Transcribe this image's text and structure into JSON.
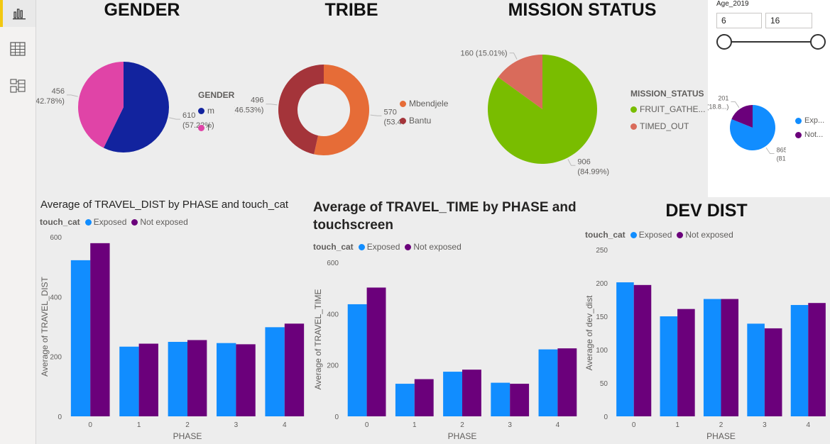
{
  "nav": {
    "items": [
      {
        "name": "report-view",
        "icon": "bar-chart-icon"
      },
      {
        "name": "data-view",
        "icon": "table-grid-icon"
      },
      {
        "name": "model-view",
        "icon": "model-diagram-icon"
      }
    ]
  },
  "slicer": {
    "title": "Age_2019",
    "min_value": "6",
    "max_value": "16"
  },
  "colors": {
    "m": "#12239e",
    "f": "#e044a7",
    "mbendjele": "#e66c37",
    "bantu": "#a4343a",
    "fruit": "#79bd00",
    "timed_out": "#d96b5b",
    "exposed": "#118dff",
    "not_exposed": "#6b007b"
  },
  "chart_data": [
    {
      "type": "pie",
      "title": "GENDER",
      "legend_title": "GENDER",
      "legend_position": "right",
      "slices": [
        {
          "label": "m",
          "value": 610,
          "display": "610",
          "pct": "(57.22%)"
        },
        {
          "label": "f",
          "value": 456,
          "display": "456",
          "pct": "(42.78%)"
        }
      ]
    },
    {
      "type": "pie",
      "subtype": "donut",
      "title": "TRIBE",
      "legend_position": "right",
      "slices": [
        {
          "label": "Mbendjele",
          "value": 570,
          "display": "570",
          "pct": "(53.47%)"
        },
        {
          "label": "Bantu",
          "value": 496,
          "display": "496",
          "pct": "(46.53%)"
        }
      ]
    },
    {
      "type": "pie",
      "title": "MISSION STATUS",
      "legend_title": "MISSION_STATUS",
      "legend_position": "right",
      "slices": [
        {
          "label": "FRUIT_GATHE...",
          "value": 906,
          "display": "906",
          "pct": "(84.99%)"
        },
        {
          "label": "TIMED_OUT",
          "value": 160,
          "display": "160",
          "pct": "(15.01%)",
          "inline": "160 (15.01%)"
        }
      ]
    },
    {
      "type": "pie",
      "title": "",
      "legend_position": "right",
      "slices": [
        {
          "label": "Exp...",
          "value": 865,
          "display": "865",
          "pct": "(81...)"
        },
        {
          "label": "Not...",
          "value": 201,
          "display": "201",
          "pct": "(18.8...)"
        }
      ]
    },
    {
      "type": "bar",
      "title": "Average of TRAVEL_DIST by PHASE and touch_cat",
      "legend_title": "touch_cat",
      "xlabel": "PHASE",
      "ylabel": "Average of TRAVEL_DIST",
      "ylim": [
        0,
        600
      ],
      "yticks": [
        0,
        200,
        400,
        600
      ],
      "categories": [
        "0",
        "1",
        "2",
        "3",
        "4"
      ],
      "series": [
        {
          "name": "Exposed",
          "values": [
            522,
            233,
            249,
            245,
            298
          ]
        },
        {
          "name": "Not exposed",
          "values": [
            579,
            243,
            255,
            241,
            310
          ]
        }
      ]
    },
    {
      "type": "bar",
      "title": "Average of TRAVEL_TIME by PHASE and touchscreen",
      "legend_title": "touch_cat",
      "xlabel": "PHASE",
      "ylabel": "Average of TRAVEL_TIME",
      "ylim": [
        0,
        600
      ],
      "yticks": [
        0,
        200,
        400,
        600
      ],
      "categories": [
        "0",
        "1",
        "2",
        "3",
        "4"
      ],
      "series": [
        {
          "name": "Exposed",
          "values": [
            437,
            127,
            174,
            131,
            261
          ]
        },
        {
          "name": "Not exposed",
          "values": [
            502,
            145,
            182,
            127,
            265
          ]
        }
      ]
    },
    {
      "type": "bar",
      "title": "DEV DIST",
      "legend_title": "touch_cat",
      "xlabel": "PHASE",
      "ylabel": "Average of dev_dist",
      "ylim": [
        0,
        250
      ],
      "yticks": [
        0,
        50,
        100,
        150,
        200,
        250
      ],
      "categories": [
        "0",
        "1",
        "2",
        "3",
        "4"
      ],
      "series": [
        {
          "name": "Exposed",
          "values": [
            201,
            150,
            176,
            139,
            167
          ]
        },
        {
          "name": "Not exposed",
          "values": [
            197,
            161,
            176,
            132,
            170
          ]
        }
      ]
    }
  ]
}
